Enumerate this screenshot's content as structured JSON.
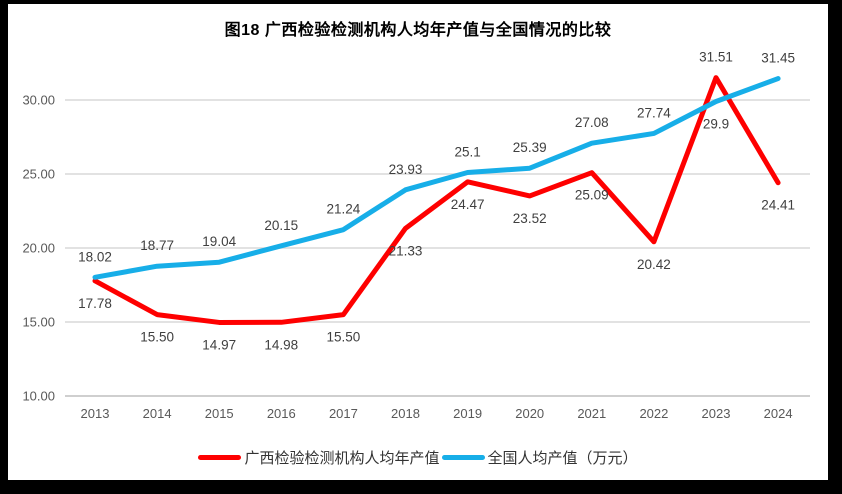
{
  "title": "图18 广西检验检测机构人均年产值与全国情况的比较",
  "chart_data": {
    "type": "line",
    "title": "图18 广西检验检测机构人均年产值与全国情况的比较",
    "categories": [
      "2013",
      "2014",
      "2015",
      "2016",
      "2017",
      "2018",
      "2019",
      "2020",
      "2021",
      "2022",
      "2023",
      "2024"
    ],
    "series": [
      {
        "key": "guangxi",
        "name": "广西检验检测机构人均年产值",
        "color": "#FE0000",
        "values": [
          17.78,
          15.5,
          14.97,
          14.98,
          15.5,
          21.33,
          24.47,
          23.52,
          25.09,
          20.42,
          31.51,
          24.41
        ],
        "labels": [
          "17.78",
          "15.50",
          "14.97",
          "14.98",
          "15.50",
          "21.33",
          "24.47",
          "23.52",
          "25.09",
          "20.42",
          "31.51",
          "24.41"
        ],
        "label_pos": [
          "below",
          "below",
          "below",
          "below",
          "below",
          "below",
          "below",
          "below",
          "below",
          "below",
          "above",
          "below"
        ]
      },
      {
        "key": "national",
        "name": "全国人均产值（万元）",
        "color": "#17AEE8",
        "values": [
          18.02,
          18.77,
          19.04,
          20.15,
          21.24,
          23.93,
          25.1,
          25.39,
          27.08,
          27.74,
          29.9,
          31.45
        ],
        "labels": [
          "18.02",
          "18.77",
          "19.04",
          "20.15",
          "21.24",
          "23.93",
          "25.1",
          "25.39",
          "27.08",
          "27.74",
          "29.9",
          "31.45"
        ],
        "label_pos": [
          "above",
          "above",
          "above",
          "above",
          "above",
          "above",
          "above",
          "above",
          "above",
          "above",
          "below",
          "above"
        ]
      }
    ],
    "xlabel": "",
    "ylabel": "",
    "ylim": [
      10,
      30
    ],
    "yticks": [
      "10.00",
      "15.00",
      "20.00",
      "25.00",
      "30.00"
    ],
    "grid": true,
    "gridline_color": "#D9D9D9",
    "axisline_color": "#BFBFBF",
    "legend_position": "bottom"
  },
  "legend": {
    "items": [
      {
        "label": "广西检验检测机构人均年产值",
        "color": "#FE0000"
      },
      {
        "label": "全国人均产值（万元）",
        "color": "#17AEE8"
      }
    ]
  }
}
